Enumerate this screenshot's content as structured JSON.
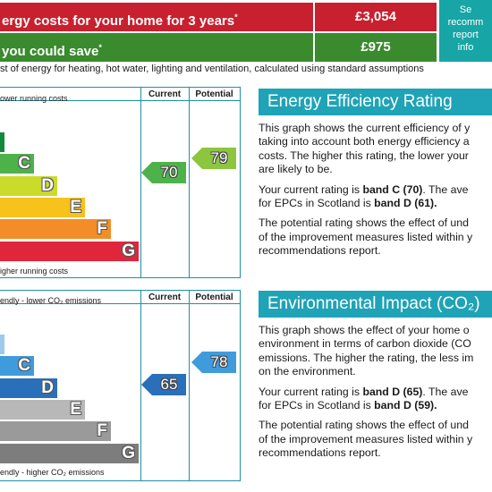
{
  "costs": {
    "row1_label": "ergy costs for your home for 3 years",
    "row1_sup": "*",
    "row1_value": "£3,054",
    "row2_label": "you could save",
    "row2_sup": "*",
    "row2_value": "£975",
    "side_lines": [
      "Se",
      "recomm",
      "report",
      "info"
    ],
    "note": "st of energy for heating, hot water, lighting and ventilation, calculated using standard assumptions",
    "colors": {
      "red": "#c8202e",
      "green": "#3a8a2e",
      "side": "#17a5a5"
    }
  },
  "energy_chart": {
    "top_label": "ower running costs",
    "bottom_label": "igher running costs",
    "col_current": "Current",
    "col_potential": "Potential",
    "bands": [
      {
        "letter": "",
        "color": "#128a3d"
      },
      {
        "letter": "C",
        "color": "#4eb24a"
      },
      {
        "letter": "D",
        "color": "#cbdb2a"
      },
      {
        "letter": "E",
        "color": "#f8c21c"
      },
      {
        "letter": "F",
        "color": "#f28d27"
      },
      {
        "letter": "G",
        "color": "#e0263a"
      }
    ],
    "current": {
      "value": "70",
      "band": "C",
      "color": "#4eb24a"
    },
    "potential": {
      "value": "79",
      "band": "C",
      "color": "#8cc63f"
    }
  },
  "env_chart": {
    "top_label": "endly - lower CO₂ emissions",
    "bottom_label": "endly - higher CO₂ emissions",
    "col_current": "Current",
    "col_potential": "Potential",
    "bands": [
      {
        "letter": "",
        "color": "#9ec8ee"
      },
      {
        "letter": "C",
        "color": "#3f9bdc"
      },
      {
        "letter": "D",
        "color": "#2a6fb9"
      },
      {
        "letter": "E",
        "color": "#b8b8b8"
      },
      {
        "letter": "F",
        "color": "#9a9a9a"
      },
      {
        "letter": "G",
        "color": "#7d7d7d"
      }
    ],
    "current": {
      "value": "65",
      "band": "D",
      "color": "#2a6fb9"
    },
    "potential": {
      "value": "78",
      "band": "C",
      "color": "#3f9bdc"
    }
  },
  "eer_panel": {
    "heading": "Energy Efficiency Rating",
    "para1_lines": [
      "This graph shows the current efficiency of y",
      "taking into account both energy efficiency a",
      "costs. The higher this rating, the lower your",
      "are likely to be."
    ],
    "para2_pre": "Your current rating is ",
    "para2_bold": "band C (70)",
    "para2_post": ". The ave",
    "para2_line2_pre": "for EPCs in Scotland is ",
    "para2_line2_bold": "band D (61).",
    "para3_lines": [
      "The potential rating shows the effect of und",
      "of the improvement measures listed within y",
      "recommendations report."
    ]
  },
  "env_panel": {
    "heading": "Environmental Impact (CO₂)",
    "para1_lines": [
      "This graph shows the effect of your home o",
      "environment in terms of carbon dioxide (CO",
      "emissions. The higher the rating, the less im",
      "on the environment."
    ],
    "para2_pre": "Your current rating is ",
    "para2_bold": "band D (65)",
    "para2_post": ". The ave",
    "para2_line2_pre": "for EPCs in Scotland is ",
    "para2_line2_bold": "band D (59).",
    "para3_lines": [
      "The potential rating shows the effect of und",
      "of the improvement measures listed within y",
      "recommendations report."
    ]
  }
}
